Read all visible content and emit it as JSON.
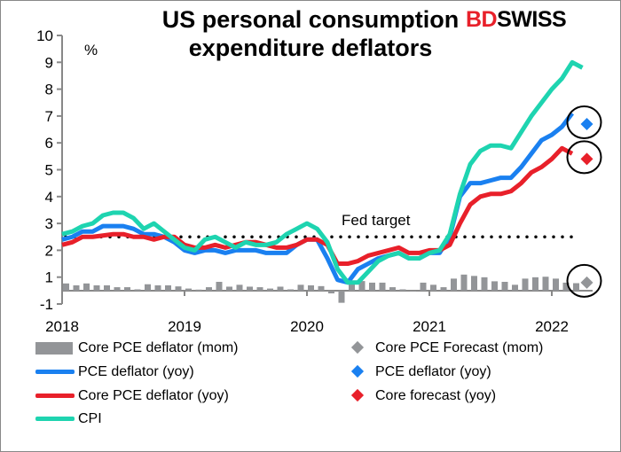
{
  "chart_data": {
    "type": "line",
    "title": "US personal consumption expenditure deflators",
    "ylabel": "%",
    "ylim": [
      -1,
      10
    ],
    "yticks": [
      "10",
      "9",
      "8",
      "7",
      "6",
      "5",
      "4",
      "3",
      "2",
      "1",
      "-1"
    ],
    "xticks": [
      "2018",
      "2019",
      "2020",
      "2021",
      "2022"
    ],
    "x_start": "2018-01",
    "x_frequency": "monthly",
    "grid": false,
    "legend_position": "bottom",
    "reference_line": {
      "label": "Fed target",
      "value": 2.5
    },
    "series": [
      {
        "name": "Core PCE deflator (mom)",
        "type": "bar",
        "color": "#939598",
        "values": [
          0.27,
          0.2,
          0.27,
          0.2,
          0.2,
          0.13,
          0.13,
          0.05,
          0.24,
          0.2,
          0.2,
          0.16,
          0.08,
          0.04,
          0.13,
          0.33,
          0.15,
          0.22,
          0.15,
          0.13,
          0.08,
          0.15,
          0.05,
          0.22,
          0.2,
          0.17,
          -0.1,
          -0.45,
          0.25,
          0.36,
          0.3,
          0.3,
          0.13,
          0.05,
          0.0,
          0.3,
          0.22,
          0.13,
          0.45,
          0.6,
          0.55,
          0.5,
          0.35,
          0.33,
          0.22,
          0.45,
          0.5,
          0.52,
          0.45,
          0.3,
          0.28
        ]
      },
      {
        "name": "PCE deflator (yoy)",
        "type": "line",
        "color": "#1a80f0",
        "values": [
          2.4,
          2.5,
          2.7,
          2.7,
          2.9,
          2.9,
          2.9,
          2.8,
          2.6,
          2.6,
          2.5,
          2.3,
          2.0,
          1.9,
          2.0,
          2.0,
          1.9,
          2.0,
          2.0,
          2.0,
          1.9,
          1.9,
          1.9,
          2.2,
          2.4,
          2.4,
          1.7,
          0.9,
          0.8,
          1.3,
          1.5,
          1.7,
          1.8,
          1.9,
          1.7,
          1.7,
          1.9,
          1.9,
          2.5,
          4.0,
          4.5,
          4.5,
          4.6,
          4.7,
          4.7,
          5.1,
          5.6,
          6.1,
          6.3,
          6.6,
          7.1
        ]
      },
      {
        "name": "Core PCE deflator (yoy)",
        "type": "line",
        "color": "#e8202a",
        "values": [
          2.2,
          2.3,
          2.5,
          2.5,
          2.55,
          2.6,
          2.6,
          2.5,
          2.5,
          2.4,
          2.5,
          2.5,
          2.2,
          2.1,
          2.1,
          2.2,
          2.1,
          2.2,
          2.3,
          2.3,
          2.2,
          2.1,
          2.1,
          2.2,
          2.4,
          2.4,
          2.2,
          1.5,
          1.5,
          1.6,
          1.8,
          1.9,
          2.0,
          2.1,
          1.9,
          1.9,
          2.0,
          2.0,
          2.2,
          3.0,
          3.7,
          4.0,
          4.1,
          4.1,
          4.2,
          4.5,
          4.9,
          5.1,
          5.4,
          5.8,
          5.6
        ]
      },
      {
        "name": "CPI",
        "type": "line",
        "color": "#1ed4b0",
        "values": [
          2.6,
          2.7,
          2.9,
          3.0,
          3.3,
          3.4,
          3.4,
          3.2,
          2.8,
          3.0,
          2.7,
          2.4,
          2.1,
          2.0,
          2.4,
          2.5,
          2.3,
          2.1,
          2.3,
          2.2,
          2.2,
          2.3,
          2.6,
          2.8,
          3.0,
          2.8,
          2.3,
          1.3,
          0.8,
          0.8,
          1.2,
          1.6,
          1.8,
          1.9,
          1.7,
          1.7,
          1.9,
          2.0,
          2.6,
          4.1,
          5.2,
          5.7,
          5.9,
          5.9,
          5.8,
          6.4,
          7.0,
          7.5,
          8.0,
          8.4,
          9.0,
          8.8
        ]
      },
      {
        "name": "Core PCE Forecast (mom)",
        "type": "marker",
        "marker": "diamond",
        "color": "#939598",
        "month_index": 51,
        "value": 0.3
      },
      {
        "name": "PCE deflator (yoy)",
        "type": "marker",
        "marker": "diamond",
        "color": "#1a80f0",
        "month_index": 51,
        "value": 6.7
      },
      {
        "name": "Core forecast (yoy)",
        "type": "marker",
        "marker": "diamond",
        "color": "#e8202a",
        "month_index": 51,
        "value": 5.4
      }
    ]
  },
  "header": {
    "title_line1": "US personal consumption",
    "title_line2": "expenditure deflators",
    "logo_bd": "BD",
    "logo_swiss": "SWISS"
  },
  "legend": [
    {
      "label": "Core PCE deflator (mom)",
      "kind": "bar",
      "color": "#939598"
    },
    {
      "label": "Core PCE Forecast (mom)",
      "kind": "diamond",
      "color": "#939598"
    },
    {
      "label": "PCE deflator (yoy)",
      "kind": "line",
      "color": "#1a80f0"
    },
    {
      "label": "PCE deflator (yoy)",
      "kind": "diamond",
      "color": "#1a80f0"
    },
    {
      "label": "Core PCE deflator (yoy)",
      "kind": "line",
      "color": "#e8202a"
    },
    {
      "label": "Core forecast (yoy)",
      "kind": "diamond",
      "color": "#e8202a"
    },
    {
      "label": "CPI",
      "kind": "line",
      "color": "#1ed4b0"
    }
  ]
}
